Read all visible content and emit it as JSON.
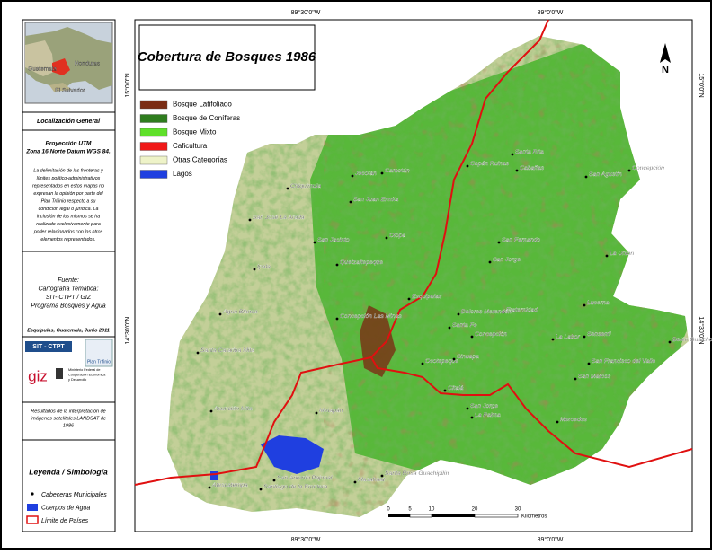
{
  "title": "Cobertura de Bosques 1986",
  "north": "N",
  "legend": {
    "items": [
      {
        "label": "Bosque Latifoliado",
        "color": "#7a2d14"
      },
      {
        "label": "Bosque de Coníferas",
        "color": "#2f7d1e"
      },
      {
        "label": "Bosque Mixto",
        "color": "#5fe02a"
      },
      {
        "label": "Caficultura",
        "color": "#f01818"
      },
      {
        "label": "Otras Categorías",
        "color": "#eef3c8"
      },
      {
        "label": "Lagos",
        "color": "#1f3fe0"
      }
    ]
  },
  "coordinates": {
    "top": [
      "89°30'0\"W",
      "89°0'0\"W"
    ],
    "bottom": [
      "89°30'0\"W",
      "89°0'0\"W"
    ],
    "left": [
      "15°0'0\"N",
      "14°30'0\"N"
    ],
    "right": [
      "15°0'0\"N",
      "14°30'0\"N"
    ]
  },
  "inset": {
    "labels": [
      "Guatemala",
      "Honduras",
      "El Salvador"
    ]
  },
  "panel": {
    "location_title": "Localización General",
    "projection": [
      "Proyección UTM",
      "Zona 16 Norte Datum WGS 84."
    ],
    "disclaimer": [
      "La delimitación de las fronteras y",
      "límites político-administrativos",
      "representados en estos mapas no",
      "expresan la opinión por parte del",
      "Plan Trifinio respecto a su",
      "condición legal o jurídica. La",
      "inclusión de los mismos se ha",
      "realizado exclusivamente para",
      "poder relacionarlos con los otros",
      "elementos representados."
    ],
    "source": [
      "Fuente:",
      "Cartografía Temática:",
      "SIT- CTPT / GIZ",
      "Programa Bosques y Agua"
    ],
    "place_date": "Esquipulas, Guatemala, Junio 2011",
    "logos": {
      "sit": "SIT - CTPT",
      "trifinio": "Plan Trifinio",
      "giz": "giz",
      "ministry": [
        "Ministerio Federal de",
        "Cooperación Económica",
        "y Desarrollo"
      ]
    },
    "note": [
      "Resultados de la interpretación de",
      "imágenes satelitales LANDSAT de",
      "1986"
    ],
    "symbology_title": "Leyenda / Simbología",
    "symbology": [
      "Cabeceras Municipales",
      "Cuerpos de Agua",
      "Límite de Países"
    ]
  },
  "scale": {
    "ticks": [
      "0",
      "5",
      "10",
      "20",
      "30"
    ],
    "unit": "Kilómetros"
  },
  "towns": [
    "Jocotán",
    "Camotán",
    "Chiquimula",
    "San Juan Ermita",
    "San José La Arada",
    "San Jacinto",
    "Olopa",
    "Quetzaltepeque",
    "Ipala",
    "Esquipulas",
    "Concepción Las Minas",
    "Agua Blanca",
    "Santa Catarina Mita",
    "Asunción Mita",
    "Metapán",
    "San Antonio Pajonal",
    "Atescatempa",
    "Santiago de la Frontera",
    "Masahuat",
    "Santa Rosa Guachipilín",
    "Citalá",
    "Ocotepeque",
    "Sinuapa",
    "San Jorge",
    "La Palma",
    "Mercedes",
    "San Marcos",
    "San Francisco del Valle",
    "La Labor",
    "Sensenti",
    "Belén Gualcho",
    "Lucerna",
    "Fraternidad",
    "Dolores Merendón",
    "Concepción",
    "Santa Fe",
    "San Fernando",
    "San Jorge",
    "La Unión",
    "Santa Rita",
    "Copán Ruinas",
    "Cabañas",
    "San Agustín",
    "Concepción"
  ]
}
